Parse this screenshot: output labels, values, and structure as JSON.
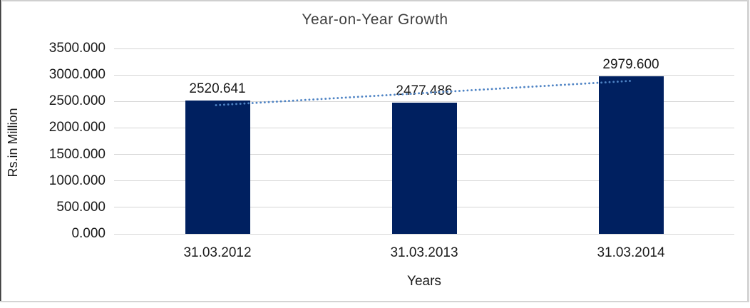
{
  "frame": {
    "background": "#ffffff",
    "outer_border_gray": "#cfcfcf",
    "outer_border_dark": "#262626"
  },
  "chart_data": {
    "type": "bar",
    "title": "Year-on-Year Growth",
    "xlabel": "Years",
    "ylabel": "Rs.in Million",
    "categories": [
      "31.03.2012",
      "31.03.2013",
      "31.03.2014"
    ],
    "values": [
      2520.641,
      2477.486,
      2979.6
    ],
    "value_labels": [
      "2520.641",
      "2477.486",
      "2979.600"
    ],
    "ylim": [
      0,
      3500
    ],
    "ytick_step": 500,
    "ytick_labels": [
      "0.000",
      "500.000",
      "1000.000",
      "1500.000",
      "2000.000",
      "2500.000",
      "3000.000",
      "3500.000"
    ],
    "grid": true,
    "legend": "none",
    "bar_color": "#002060",
    "gridline_color": "#d6d6d6",
    "text_color": "#1a1a1a",
    "title_color": "#404040",
    "trendline": {
      "type": "linear",
      "style": "dotted",
      "color": "#4e83c4",
      "trend_values_at_ends": [
        2429.77,
        2888.71
      ]
    }
  }
}
